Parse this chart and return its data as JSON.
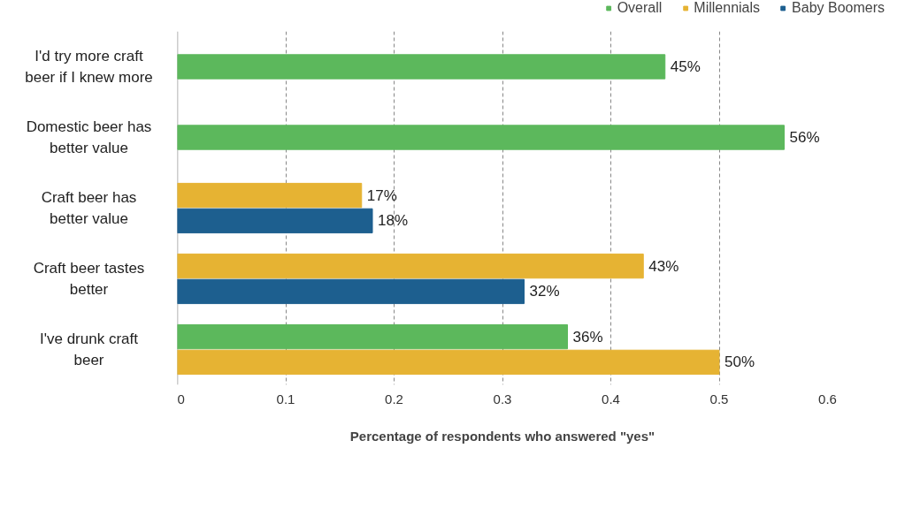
{
  "chart_data": {
    "type": "bar",
    "orientation": "horizontal",
    "categories": [
      "I'd try more craft beer if I knew more",
      "Domestic beer has better value",
      "Craft beer has better value",
      "Craft beer tastes better",
      "I've drunk craft beer"
    ],
    "series": [
      {
        "name": "Overall",
        "color": "#5cb85c",
        "values": [
          0.45,
          0.56,
          null,
          null,
          0.36
        ],
        "value_labels": [
          "45%",
          "56%",
          null,
          null,
          "36%"
        ]
      },
      {
        "name": "Millennials",
        "color": "#e6b333",
        "values": [
          null,
          null,
          0.17,
          0.43,
          0.5
        ],
        "value_labels": [
          null,
          null,
          "17%",
          "43%",
          "50%"
        ]
      },
      {
        "name": "Baby Boomers",
        "color": "#1d5f8f",
        "values": [
          null,
          null,
          0.18,
          0.32,
          null
        ],
        "value_labels": [
          null,
          null,
          "18%",
          "32%",
          null
        ]
      }
    ],
    "xlim": [
      0,
      0.6
    ],
    "xticks": [
      0,
      0.1,
      0.2,
      0.3,
      0.4,
      0.5,
      0.6
    ],
    "xlabel": "Percentage of respondents who answered \"yes\"",
    "grid": "x",
    "legend": "top right"
  }
}
